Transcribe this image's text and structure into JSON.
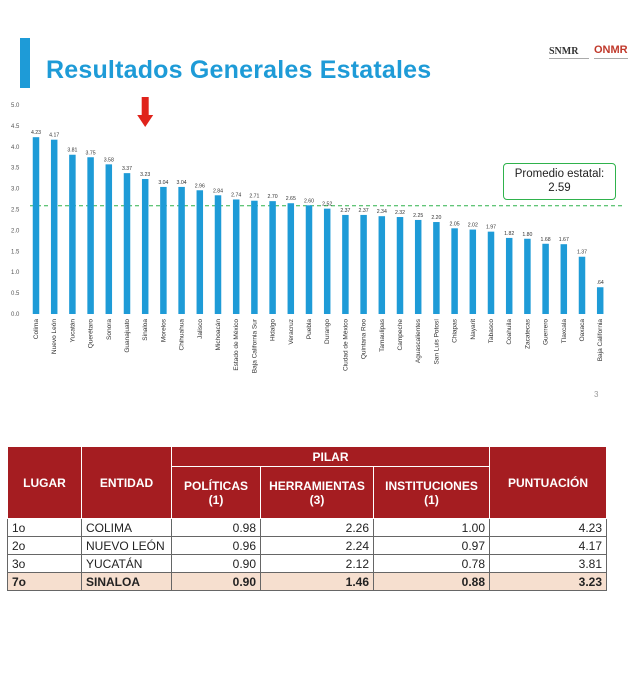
{
  "slide": {
    "title": "Resultados Generales Estatales",
    "logo_left": "SNMR",
    "logo_right": "ONMR",
    "average_label": "Promedio estatal:",
    "average_value": "2.59",
    "page_number": "3"
  },
  "colors": {
    "bar": "#1e9bd7",
    "title": "#1e9bd7",
    "average_line": "#2fb24c",
    "arrow": "#e0231b",
    "table_header": "#a51d21",
    "highlight_row": "#f6dfcf"
  },
  "chart_data": {
    "type": "bar",
    "categories": [
      "Colima",
      "Nuevo León",
      "Yucatán",
      "Querétaro",
      "Sonora",
      "Guanajuato",
      "Sinaloa",
      "Morelos",
      "Chihuahua",
      "Jalisco",
      "Michoacán",
      "Estado de México",
      "Baja California Sur",
      "Hidalgo",
      "Veracruz",
      "Puebla",
      "Durango",
      "Ciudad de México",
      "Quintana Roo",
      "Tamaulipas",
      "Campeche",
      "Aguascalientes",
      "San Luis Potosí",
      "Chiapas",
      "Nayarit",
      "Tabasco",
      "Coahuila",
      "Zacatecas",
      "Guerrero",
      "Tlaxcala",
      "Oaxaca",
      "Baja California"
    ],
    "values": [
      4.23,
      4.17,
      3.81,
      3.75,
      3.58,
      3.37,
      3.23,
      3.04,
      3.04,
      2.96,
      2.84,
      2.74,
      2.71,
      2.7,
      2.65,
      2.6,
      2.52,
      2.37,
      2.37,
      2.34,
      2.32,
      2.25,
      2.2,
      2.05,
      2.02,
      1.97,
      1.82,
      1.8,
      1.68,
      1.67,
      1.37,
      0.64
    ],
    "value_labels": [
      "4.23",
      "4.17",
      "3.81",
      "3.75",
      "3.58",
      "3.37",
      "3.23",
      "3.04",
      "3.04",
      "2.96",
      "2.84",
      "2.74",
      "2.71",
      "2.70",
      "2.65",
      "2.60",
      "2.52",
      "2.37",
      "2.37",
      "2.34",
      "2.32",
      "2.25",
      "2.20",
      "2.05",
      "2.02",
      "1.97",
      "1.82",
      "1.80",
      "1.68",
      "1.67",
      "1.37",
      ".64"
    ],
    "y_ticks": [
      "0.0",
      "0.5",
      "1.0",
      "1.5",
      "2.0",
      "2.5",
      "3.0",
      "3.5",
      "4.0",
      "4.5",
      "5.0"
    ],
    "ylim": [
      0,
      5
    ],
    "average": 2.59,
    "highlight_category": "Sinaloa",
    "grid": false,
    "title": "Resultados Generales Estatales"
  },
  "table": {
    "header": {
      "lugar": "LUGAR",
      "entidad": "ENTIDAD",
      "pilar": "PILAR",
      "politicas": "POLÍTICAS",
      "politicas_n": "(1)",
      "herramientas": "HERRAMIENTAS",
      "herramientas_n": "(3)",
      "instituciones": "INSTITUCIONES",
      "instituciones_n": "(1)",
      "puntuacion": "PUNTUACIÓN"
    },
    "rows": [
      {
        "lugar": "1o",
        "entidad": "COLIMA",
        "politicas": "0.98",
        "herramientas": "2.26",
        "instituciones": "1.00",
        "puntuacion": "4.23"
      },
      {
        "lugar": "2o",
        "entidad": "NUEVO LEÓN",
        "politicas": "0.96",
        "herramientas": "2.24",
        "instituciones": "0.97",
        "puntuacion": "4.17"
      },
      {
        "lugar": "3o",
        "entidad": "YUCATÁN",
        "politicas": "0.90",
        "herramientas": "2.12",
        "instituciones": "0.78",
        "puntuacion": "3.81"
      },
      {
        "lugar": "7o",
        "entidad": "SINALOA",
        "politicas": "0.90",
        "herramientas": "1.46",
        "instituciones": "0.88",
        "puntuacion": "3.23"
      }
    ]
  }
}
